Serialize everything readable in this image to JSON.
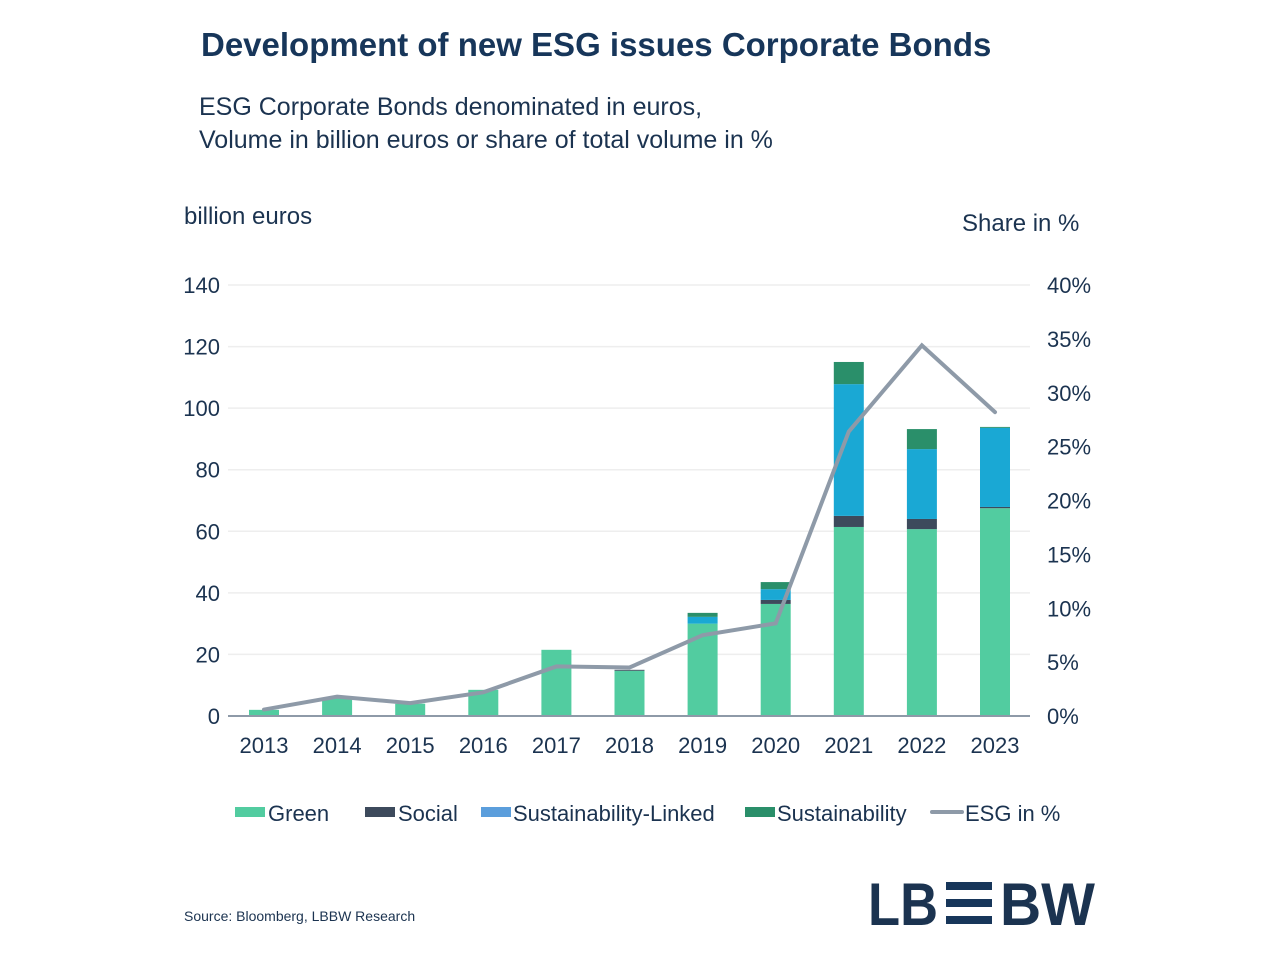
{
  "title": "Development of new ESG issues Corporate Bonds",
  "subtitle_line1": "ESG Corporate Bonds denominated in euros,",
  "subtitle_line2": "Volume in billion euros or share of total volume in %",
  "source": "Source: Bloomberg, LBBW Research",
  "logo_text": "LBBW",
  "chart_data": {
    "type": "bar",
    "stacked": true,
    "title": "Development of new ESG issues Corporate Bonds",
    "ylabel": "billion euros",
    "y2label": "Share in %",
    "ylim": [
      0,
      140
    ],
    "y2lim": [
      0,
      40
    ],
    "yticks": [
      "0",
      "20",
      "40",
      "60",
      "80",
      "100",
      "120",
      "140"
    ],
    "y2ticks": [
      "0%",
      "5%",
      "10%",
      "15%",
      "20%",
      "25%",
      "30%",
      "35%",
      "40%"
    ],
    "grid": true,
    "legend_position": "bottom",
    "categories": [
      "2013",
      "2014",
      "2015",
      "2016",
      "2017",
      "2018",
      "2019",
      "2020",
      "2021",
      "2022",
      "2023"
    ],
    "series": [
      {
        "name": "Green",
        "type": "bar",
        "color": "#52cca0",
        "values": [
          2,
          6,
          4,
          8.5,
          21.5,
          14.7,
          30,
          36.4,
          61.4,
          60.7,
          67.5
        ]
      },
      {
        "name": "Social",
        "type": "bar",
        "color": "#3d4a5c",
        "values": [
          0,
          0,
          0,
          0,
          0,
          0.3,
          0,
          1.3,
          3.6,
          3.3,
          0.4
        ]
      },
      {
        "name": "Sustainability-Linked",
        "type": "bar",
        "color": "#1aa8d4",
        "legend_color": "#5b9edc",
        "values": [
          0,
          0,
          0,
          0,
          0,
          0,
          2.2,
          3.5,
          42.8,
          22.7,
          25.7
        ]
      },
      {
        "name": "Sustainability",
        "type": "bar",
        "color": "#2a8f6a",
        "values": [
          0,
          0,
          0,
          0,
          0,
          0,
          1.3,
          2.3,
          7.2,
          6.5,
          0.3
        ]
      },
      {
        "name": "ESG in %",
        "type": "line",
        "axis": "right",
        "color": "#8e9aa8",
        "values": [
          0.6,
          1.8,
          1.2,
          2.2,
          4.6,
          4.5,
          7.5,
          8.6,
          26.4,
          34.4,
          28.2
        ]
      }
    ]
  }
}
